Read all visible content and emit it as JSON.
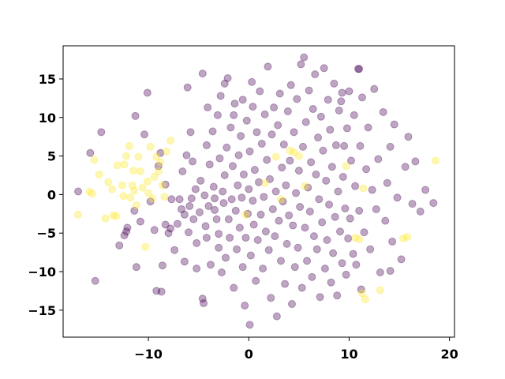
{
  "chart_data": {
    "type": "scatter",
    "title": "",
    "xlabel": "",
    "ylabel": "",
    "xlim": [
      -18.5,
      20.5
    ],
    "ylim": [
      -18.5,
      19.3
    ],
    "xticks": [
      -10,
      0,
      10,
      20
    ],
    "yticks": [
      -15,
      -10,
      -5,
      0,
      5,
      10,
      15
    ],
    "xtick_labels": [
      "−10",
      "0",
      "10",
      "20"
    ],
    "ytick_labels": [
      "−15",
      "−10",
      "−5",
      "0",
      "5",
      "10",
      "15"
    ],
    "grid": false,
    "legend": "none",
    "marker_alpha": 0.35,
    "colors": {
      "class_0": "#440154",
      "class_1": "#fde725"
    },
    "series": [
      {
        "color": "#440154",
        "points": [
          [
            -17,
            0.4
          ],
          [
            -15.8,
            5.4
          ],
          [
            -15.3,
            -11.2
          ],
          [
            -14.7,
            8.1
          ],
          [
            -12.9,
            -6.6
          ],
          [
            -12.4,
            -5.3
          ],
          [
            -12.1,
            -4.3
          ],
          [
            -11.4,
            -2.1
          ],
          [
            -11.3,
            10.2
          ],
          [
            -11.2,
            -9.4
          ],
          [
            -10.8,
            -3.5
          ],
          [
            -10.4,
            7.8
          ],
          [
            -10.1,
            13.2
          ],
          [
            -9.8,
            -0.9
          ],
          [
            -9.4,
            -4.6
          ],
          [
            -9.2,
            -12.5
          ],
          [
            -9.0,
            3.7
          ],
          [
            -8.8,
            5.4
          ],
          [
            -8.7,
            -12.6
          ],
          [
            -8.6,
            -9.2
          ],
          [
            -8.3,
            -3.9
          ],
          [
            -8.3,
            1.3
          ],
          [
            -8.0,
            -5.0
          ],
          [
            -7.8,
            -4.4
          ],
          [
            -7.7,
            -0.6
          ],
          [
            -7.4,
            -7.2
          ],
          [
            -7.1,
            -3.8
          ],
          [
            -6.9,
            -0.6
          ],
          [
            -6.7,
            -1.9
          ],
          [
            -6.6,
            3.0
          ],
          [
            -6.4,
            -2.6
          ],
          [
            -6.4,
            -8.7
          ],
          [
            -6.2,
            5.1
          ],
          [
            -6.1,
            13.9
          ],
          [
            -6.0,
            -4.9
          ],
          [
            -5.9,
            -1.5
          ],
          [
            -5.8,
            8.1
          ],
          [
            -5.7,
            -0.5
          ],
          [
            -5.6,
            4.3
          ],
          [
            -5.5,
            -3.2
          ],
          [
            -5.3,
            0.7
          ],
          [
            -5.2,
            -9.6
          ],
          [
            -5.2,
            -6.3
          ],
          [
            -4.9,
            -2.3
          ],
          [
            -4.8,
            1.8
          ],
          [
            -4.6,
            -13.5
          ],
          [
            -4.6,
            15.7
          ],
          [
            -4.5,
            -14.1
          ],
          [
            -4.4,
            -0.1
          ],
          [
            -4.3,
            -4.1
          ],
          [
            -4.2,
            -5.6
          ],
          [
            -4.2,
            6.4
          ],
          [
            -4.1,
            11.3
          ],
          [
            -4.0,
            -1.5
          ],
          [
            -3.9,
            3.9
          ],
          [
            -3.8,
            -9.1
          ],
          [
            -3.6,
            8.2
          ],
          [
            -3.5,
            1.0
          ],
          [
            -3.4,
            -0.5
          ],
          [
            -3.4,
            -2.0
          ],
          [
            -3.2,
            -3.2
          ],
          [
            -3.1,
            10.3
          ],
          [
            -3.0,
            -5.1
          ],
          [
            -3.0,
            -6.9
          ],
          [
            -2.9,
            4.7
          ],
          [
            -2.8,
            12.8
          ],
          [
            -2.7,
            -10.1
          ],
          [
            -2.6,
            0.4
          ],
          [
            -2.5,
            -1.1
          ],
          [
            -2.4,
            14.4
          ],
          [
            -2.4,
            2.5
          ],
          [
            -2.3,
            -8.2
          ],
          [
            -2.2,
            6.1
          ],
          [
            -2.1,
            15.1
          ],
          [
            -2.0,
            -3.2
          ],
          [
            -1.9,
            -5.6
          ],
          [
            -1.8,
            8.7
          ],
          [
            -1.7,
            -0.6
          ],
          [
            -1.6,
            3.7
          ],
          [
            -1.5,
            10.3
          ],
          [
            -1.5,
            -12.1
          ],
          [
            -1.4,
            11.8
          ],
          [
            -1.3,
            -2.1
          ],
          [
            -1.2,
            -7.1
          ],
          [
            -1.1,
            1.2
          ],
          [
            -1.0,
            5.1
          ],
          [
            -0.9,
            -4.3
          ],
          [
            -0.8,
            7.6
          ],
          [
            -0.7,
            -0.4
          ],
          [
            -0.6,
            12.3
          ],
          [
            -0.6,
            -9.4
          ],
          [
            -0.5,
            2.6
          ],
          [
            -0.4,
            -14.4
          ],
          [
            -0.3,
            -5.6
          ],
          [
            -0.2,
            9.6
          ],
          [
            -0.1,
            -2.5
          ],
          [
            0.0,
            0.7
          ],
          [
            0.1,
            -16.9
          ],
          [
            0.1,
            5.6
          ],
          [
            0.2,
            -7.9
          ],
          [
            0.3,
            14.6
          ],
          [
            0.4,
            -0.8
          ],
          [
            0.4,
            11.4
          ],
          [
            0.5,
            -3.9
          ],
          [
            0.6,
            3.2
          ],
          [
            0.7,
            -11.2
          ],
          [
            0.8,
            8.1
          ],
          [
            0.9,
            -5.9
          ],
          [
            1.0,
            1.6
          ],
          [
            1.1,
            13.4
          ],
          [
            1.2,
            -2.6
          ],
          [
            1.3,
            6.6
          ],
          [
            1.4,
            -9.6
          ],
          [
            1.5,
            -0.3
          ],
          [
            1.6,
            10.4
          ],
          [
            1.7,
            -4.8
          ],
          [
            1.8,
            4.5
          ],
          [
            1.9,
            16.6
          ],
          [
            2.0,
            -7.2
          ],
          [
            2.1,
            2.0
          ],
          [
            2.2,
            -13.4
          ],
          [
            2.3,
            7.8
          ],
          [
            2.4,
            -1.9
          ],
          [
            2.5,
            11.3
          ],
          [
            2.6,
            -5.4
          ],
          [
            2.7,
            0.4
          ],
          [
            2.8,
            -15.8
          ],
          [
            2.9,
            9.0
          ],
          [
            3.0,
            -3.4
          ],
          [
            3.1,
            13.1
          ],
          [
            3.2,
            -8.6
          ],
          [
            3.3,
            3.5
          ],
          [
            3.4,
            -0.9
          ],
          [
            3.5,
            6.5
          ],
          [
            3.6,
            -11.6
          ],
          [
            3.7,
            1.2
          ],
          [
            3.8,
            -6.4
          ],
          [
            3.9,
            10.8
          ],
          [
            4.0,
            -2.7
          ],
          [
            4.1,
            4.4
          ],
          [
            4.2,
            14.2
          ],
          [
            4.3,
            -14.2
          ],
          [
            4.4,
            -4.0
          ],
          [
            4.5,
            8.1
          ],
          [
            4.6,
            -9.4
          ],
          [
            4.7,
            0.2
          ],
          [
            4.8,
            12.4
          ],
          [
            4.9,
            -6.9
          ],
          [
            5.0,
            3.1
          ],
          [
            5.1,
            -1.6
          ],
          [
            5.2,
            16.9
          ],
          [
            5.3,
            -12.1
          ],
          [
            5.4,
            6.2
          ],
          [
            5.5,
            17.8
          ],
          [
            5.6,
            -4.3
          ],
          [
            5.7,
            9.4
          ],
          [
            5.8,
            -8.6
          ],
          [
            5.9,
            0.9
          ],
          [
            6.0,
            13.5
          ],
          [
            6.1,
            -2.2
          ],
          [
            6.2,
            4.2
          ],
          [
            6.3,
            -10.7
          ],
          [
            6.4,
            11.1
          ],
          [
            6.5,
            -5.4
          ],
          [
            6.6,
            15.6
          ],
          [
            6.7,
            2.6
          ],
          [
            6.8,
            -7.1
          ],
          [
            6.9,
            7.4
          ],
          [
            7.0,
            -0.6
          ],
          [
            7.1,
            -13.3
          ],
          [
            7.2,
            10.1
          ],
          [
            7.3,
            -3.6
          ],
          [
            7.4,
            5.7
          ],
          [
            7.5,
            16.4
          ],
          [
            7.6,
            -9.6
          ],
          [
            7.7,
            1.8
          ],
          [
            7.8,
            -5.9
          ],
          [
            7.9,
            12.3
          ],
          [
            8.0,
            -1.3
          ],
          [
            8.1,
            8.4
          ],
          [
            8.2,
            -11.4
          ],
          [
            8.3,
            3.6
          ],
          [
            8.4,
            -7.6
          ],
          [
            8.5,
            14.4
          ],
          [
            8.6,
            -2.9
          ],
          [
            8.7,
            6.4
          ],
          [
            8.8,
            -13.1
          ],
          [
            8.9,
            0.4
          ],
          [
            9.0,
            10.9
          ],
          [
            9.1,
            -4.8
          ],
          [
            9.2,
            12.1
          ],
          [
            9.3,
            -8.9
          ],
          [
            9.4,
            2.3
          ],
          [
            9.5,
            6.3
          ],
          [
            9.6,
            -1.8
          ],
          [
            9.7,
            -10.4
          ],
          [
            9.8,
            8.6
          ],
          [
            9.9,
            -5.7
          ],
          [
            10.0,
            13.4
          ],
          [
            10.1,
            -3.1
          ],
          [
            10.2,
            4.4
          ],
          [
            10.4,
            -7.7
          ],
          [
            10.5,
            10.3
          ],
          [
            10.6,
            1.1
          ],
          [
            10.7,
            -9.1
          ],
          [
            10.9,
            16.3
          ],
          [
            11.0,
            -2.1
          ],
          [
            11.1,
            6.3
          ],
          [
            11.2,
            -12.3
          ],
          [
            11.3,
            12.6
          ],
          [
            11.5,
            -4.9
          ],
          [
            11.7,
            3.3
          ],
          [
            11.9,
            8.7
          ],
          [
            12.1,
            -7.1
          ],
          [
            12.3,
            0.6
          ],
          [
            12.5,
            13.7
          ],
          [
            12.7,
            -1.9
          ],
          [
            12.9,
            4.6
          ],
          [
            13.1,
            -10.1
          ],
          [
            13.4,
            10.7
          ],
          [
            13.6,
            -3.4
          ],
          [
            13.8,
            1.5
          ],
          [
            14.1,
            6.2
          ],
          [
            14.3,
            -6.1
          ],
          [
            14.5,
            9.1
          ],
          [
            14.8,
            -0.4
          ],
          [
            15.2,
            -8.4
          ],
          [
            15.6,
            3.6
          ],
          [
            15.9,
            7.5
          ],
          [
            16.3,
            -1.2
          ],
          [
            16.6,
            4.3
          ],
          [
            17.1,
            -2.2
          ],
          [
            17.6,
            0.6
          ],
          [
            18.4,
            -1.1
          ],
          [
            14.1,
            -9.9
          ],
          [
            9.3,
            13.2
          ],
          [
            -12.2,
            -4.8
          ],
          [
            11.0,
            16.3
          ]
        ]
      },
      {
        "color": "#fde725",
        "points": [
          [
            -17.0,
            -2.6
          ],
          [
            -15.9,
            0.4
          ],
          [
            -15.6,
            0.1
          ],
          [
            -15.4,
            4.5
          ],
          [
            -14.9,
            2.6
          ],
          [
            -14.3,
            -3.1
          ],
          [
            -14.0,
            1.6
          ],
          [
            -13.6,
            0.7
          ],
          [
            -13.5,
            -2.7
          ],
          [
            -13.2,
            -2.8
          ],
          [
            -13.1,
            3.8
          ],
          [
            -12.6,
            1.2
          ],
          [
            -12.5,
            -0.2
          ],
          [
            -12.4,
            3.9
          ],
          [
            -12.2,
            5.0
          ],
          [
            -11.9,
            6.3
          ],
          [
            -11.8,
            -0.4
          ],
          [
            -11.6,
            1.2
          ],
          [
            -11.5,
            3.1
          ],
          [
            -11.4,
            0.5
          ],
          [
            -11.2,
            -1.4
          ],
          [
            -11.0,
            4.9
          ],
          [
            -10.8,
            3.0
          ],
          [
            -10.6,
            0.9
          ],
          [
            -10.3,
            -6.8
          ],
          [
            -10.1,
            1.7
          ],
          [
            -10.0,
            0.2
          ],
          [
            -9.8,
            6.2
          ],
          [
            -9.6,
            -0.5
          ],
          [
            -9.4,
            2.3
          ],
          [
            -9.2,
            4.9
          ],
          [
            -9.0,
            3.0
          ],
          [
            -8.8,
            4.2
          ],
          [
            -8.6,
            1.2
          ],
          [
            -8.4,
            -0.3
          ],
          [
            -8.2,
            5.6
          ],
          [
            -7.8,
            7.0
          ],
          [
            -0.3,
            -2.6
          ],
          [
            1.6,
            1.5
          ],
          [
            2.7,
            4.9
          ],
          [
            3.2,
            -0.6
          ],
          [
            4.1,
            5.7
          ],
          [
            4.5,
            5.5
          ],
          [
            5.0,
            5.0
          ],
          [
            5.6,
            1.1
          ],
          [
            9.7,
            3.7
          ],
          [
            10.6,
            -5.6
          ],
          [
            11.0,
            -5.8
          ],
          [
            11.4,
            0.8
          ],
          [
            11.3,
            -12.8
          ],
          [
            11.6,
            -13.6
          ],
          [
            13.1,
            -12.4
          ],
          [
            15.4,
            -5.7
          ],
          [
            15.8,
            -5.5
          ],
          [
            18.6,
            4.4
          ]
        ]
      }
    ]
  }
}
